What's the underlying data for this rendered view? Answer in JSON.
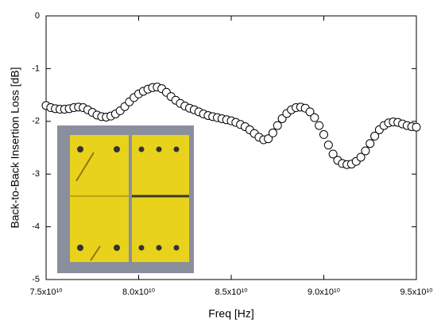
{
  "chart_data": {
    "type": "scatter",
    "x_label": "Freq [Hz]",
    "y_label": "Back-to-Back Insertion Loss [dB]",
    "xlim": [
      75000000000.0,
      95000000000.0
    ],
    "xticks": [
      {
        "value": 75000000000.0,
        "label": "7.5x10¹⁰"
      },
      {
        "value": 80000000000.0,
        "label": "8.0x10¹⁰"
      },
      {
        "value": 85000000000.0,
        "label": "8.5x10¹⁰"
      },
      {
        "value": 90000000000.0,
        "label": "9.0x10¹⁰"
      },
      {
        "value": 95000000000.0,
        "label": "9.5x10¹⁰"
      }
    ],
    "ylim": [
      -5,
      0
    ],
    "yticks": [
      0,
      -1,
      -2,
      -3,
      -4,
      -5
    ],
    "marker": "open-circle",
    "color": "#000000",
    "x": [
      75000000000.0,
      75250000000.0,
      75500000000.0,
      75750000000.0,
      76000000000.0,
      76250000000.0,
      76500000000.0,
      76750000000.0,
      77000000000.0,
      77250000000.0,
      77500000000.0,
      77750000000.0,
      78000000000.0,
      78250000000.0,
      78500000000.0,
      78750000000.0,
      79000000000.0,
      79250000000.0,
      79500000000.0,
      79750000000.0,
      80000000000.0,
      80250000000.0,
      80500000000.0,
      80750000000.0,
      81000000000.0,
      81250000000.0,
      81500000000.0,
      81750000000.0,
      82000000000.0,
      82250000000.0,
      82500000000.0,
      82750000000.0,
      83000000000.0,
      83250000000.0,
      83500000000.0,
      83750000000.0,
      84000000000.0,
      84250000000.0,
      84500000000.0,
      84750000000.0,
      85000000000.0,
      85250000000.0,
      85500000000.0,
      85750000000.0,
      86000000000.0,
      86250000000.0,
      86500000000.0,
      86750000000.0,
      87000000000.0,
      87250000000.0,
      87500000000.0,
      87750000000.0,
      88000000000.0,
      88250000000.0,
      88500000000.0,
      88750000000.0,
      89000000000.0,
      89250000000.0,
      89500000000.0,
      89750000000.0,
      90000000000.0,
      90250000000.0,
      90500000000.0,
      90750000000.0,
      91000000000.0,
      91250000000.0,
      91500000000.0,
      91750000000.0,
      92000000000.0,
      92250000000.0,
      92500000000.0,
      92750000000.0,
      93000000000.0,
      93250000000.0,
      93500000000.0,
      93750000000.0,
      94000000000.0,
      94250000000.0,
      94500000000.0,
      94750000000.0,
      95000000000.0
    ],
    "values": [
      -1.7,
      -1.74,
      -1.76,
      -1.77,
      -1.77,
      -1.76,
      -1.74,
      -1.73,
      -1.74,
      -1.78,
      -1.83,
      -1.88,
      -1.91,
      -1.92,
      -1.9,
      -1.86,
      -1.8,
      -1.72,
      -1.63,
      -1.55,
      -1.48,
      -1.43,
      -1.39,
      -1.36,
      -1.35,
      -1.38,
      -1.45,
      -1.53,
      -1.6,
      -1.66,
      -1.71,
      -1.75,
      -1.78,
      -1.82,
      -1.86,
      -1.89,
      -1.91,
      -1.93,
      -1.95,
      -1.97,
      -1.99,
      -2.02,
      -2.06,
      -2.1,
      -2.16,
      -2.23,
      -2.3,
      -2.35,
      -2.33,
      -2.22,
      -2.08,
      -1.95,
      -1.85,
      -1.78,
      -1.74,
      -1.73,
      -1.75,
      -1.82,
      -1.93,
      -2.08,
      -2.25,
      -2.45,
      -2.62,
      -2.74,
      -2.8,
      -2.82,
      -2.81,
      -2.76,
      -2.68,
      -2.56,
      -2.42,
      -2.28,
      -2.16,
      -2.08,
      -2.03,
      -2.01,
      -2.02,
      -2.05,
      -2.08,
      -2.1,
      -2.11
    ]
  }
}
